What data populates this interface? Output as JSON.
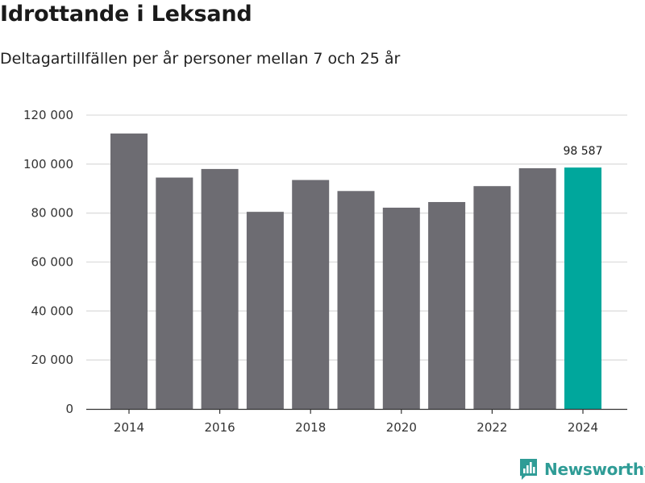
{
  "title": "Idrottande i Leksand",
  "subtitle": "Deltagartillfällen per år personer mellan 7 och 25 år",
  "brand": {
    "name": "Newsworthy",
    "icon": "newsworthy-logo-icon",
    "color": "#2f9c96"
  },
  "colors": {
    "bar": "#6d6c72",
    "highlight": "#00a79c",
    "grid": "#dddddd",
    "axis": "#333333"
  },
  "chart_data": {
    "type": "bar",
    "title": "Idrottande i Leksand",
    "subtitle": "Deltagartillfällen per år personer mellan 7 och 25 år",
    "xlabel": "",
    "ylabel": "",
    "categories": [
      "2014",
      "2015",
      "2016",
      "2017",
      "2018",
      "2019",
      "2020",
      "2021",
      "2022",
      "2023",
      "2024"
    ],
    "values": [
      112500,
      94500,
      98000,
      80500,
      93500,
      89000,
      82200,
      84500,
      91000,
      98300,
      98587
    ],
    "x_tick_labels": [
      "2014",
      "",
      "2016",
      "",
      "2018",
      "",
      "2020",
      "",
      "2022",
      "",
      "2024"
    ],
    "y_ticks": [
      0,
      20000,
      40000,
      60000,
      80000,
      100000,
      120000
    ],
    "y_tick_labels": [
      "0",
      "20 000",
      "40 000",
      "60 000",
      "80 000",
      "100 000",
      "120 000"
    ],
    "ylim": [
      0,
      120000
    ],
    "grid": true,
    "highlight_index": 10,
    "data_labels": [
      {
        "index": 10,
        "text": "98 587"
      }
    ]
  }
}
